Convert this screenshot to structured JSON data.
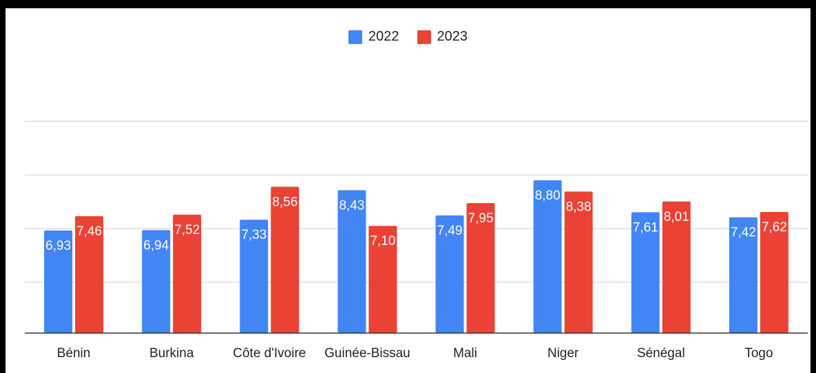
{
  "chart_data": {
    "type": "bar",
    "categories": [
      "Bénin",
      "Burkina",
      "Côte d'Ivoire",
      "Guinée-Bissau",
      "Mali",
      "Niger",
      "Sénégal",
      "Togo"
    ],
    "series": [
      {
        "name": "2022",
        "values": [
          6.93,
          6.94,
          7.33,
          8.43,
          7.49,
          8.8,
          7.61,
          7.42
        ],
        "labels": [
          "6,93",
          "6,94",
          "7,33",
          "8,43",
          "7,49",
          "8,80",
          "7,61",
          "7,42"
        ],
        "color": "#4285f4"
      },
      {
        "name": "2023",
        "values": [
          7.46,
          7.52,
          8.56,
          7.1,
          7.95,
          8.38,
          8.01,
          7.62
        ],
        "labels": [
          "7,46",
          "7,52",
          "8,56",
          "7,10",
          "7,95",
          "8,38",
          "8,01",
          "7,62"
        ],
        "color": "#ea4335"
      }
    ],
    "ylim": [
      3.1,
      10.5
    ],
    "gridlines": [
      5,
      7,
      9,
      11
    ],
    "grid": true,
    "legend_position": "top-center",
    "data_labels": true,
    "axis_color": "#333333",
    "grid_color": "#cccccc"
  }
}
